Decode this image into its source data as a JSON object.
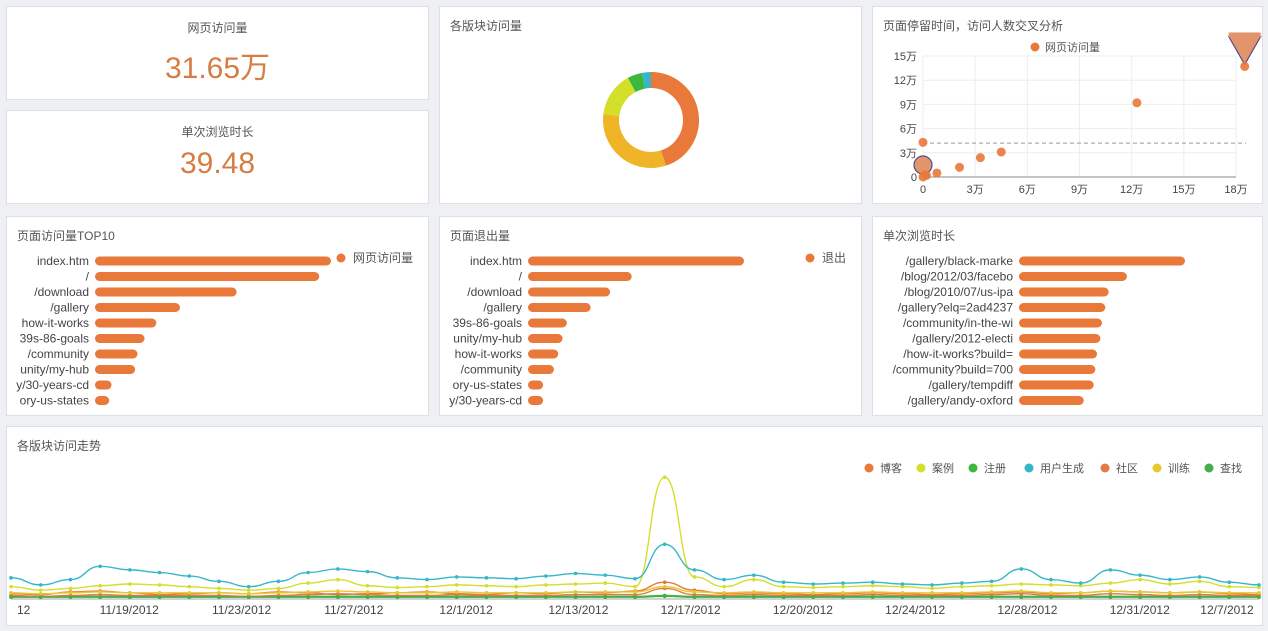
{
  "kpis": [
    {
      "title": "网页访问量",
      "value": "31.65万"
    },
    {
      "title": "单次浏览时长",
      "value": "39.48"
    }
  ],
  "colors": {
    "orange": "#e8793a",
    "yellow": "#f0b429",
    "lime": "#d4df2a",
    "green": "#3cb93c",
    "teal": "#35b7c9",
    "accent_text": "#d67d43"
  },
  "chart_data": [
    {
      "id": "donut",
      "type": "pie",
      "title": "各版块访问量",
      "slices": [
        {
          "value": 45,
          "color": "#e8793a"
        },
        {
          "value": 32,
          "color": "#f0b429"
        },
        {
          "value": 15,
          "color": "#d4df2a"
        },
        {
          "value": 5,
          "color": "#3cb93c"
        },
        {
          "value": 3,
          "color": "#35b7c9"
        }
      ]
    },
    {
      "id": "scatter",
      "type": "scatter",
      "title": "页面停留时间，访问人数交叉分析",
      "legend": [
        "网页访问量"
      ],
      "xlim": [
        0,
        180000
      ],
      "ylim": [
        0,
        150000
      ],
      "xticks": [
        0,
        30000,
        60000,
        90000,
        120000,
        150000,
        180000
      ],
      "xtick_labels": [
        "0",
        "3万",
        "6万",
        "9万",
        "12万",
        "15万",
        "18万"
      ],
      "yticks": [
        0,
        30000,
        60000,
        90000,
        120000,
        150000
      ],
      "ytick_labels": [
        "0",
        "3万",
        "6万",
        "9万",
        "12万",
        "15万"
      ],
      "mean_y": 42000,
      "points": [
        [
          0,
          0
        ],
        [
          1000,
          3000
        ],
        [
          2000,
          2000
        ],
        [
          8000,
          5000
        ],
        [
          21000,
          12000
        ],
        [
          33000,
          24000
        ],
        [
          45000,
          31000
        ],
        [
          0,
          43000
        ],
        [
          123000,
          92000
        ],
        [
          185000,
          137000
        ]
      ]
    },
    {
      "id": "top10",
      "type": "bar",
      "title": "页面访问量TOP10",
      "legend": [
        "网页访问量"
      ],
      "categories": [
        "index.htm",
        "/",
        "/download",
        "/gallery",
        "how-it-works",
        "39s-86-goals",
        "/community",
        "unity/my-hub",
        "y/30-years-cd",
        "ory-us-states"
      ],
      "values": [
        100,
        95,
        60,
        36,
        26,
        21,
        18,
        17,
        7,
        6
      ]
    },
    {
      "id": "exits",
      "type": "bar",
      "title": "页面退出量",
      "legend": [
        "退出"
      ],
      "categories": [
        "index.htm",
        "/",
        "/download",
        "/gallery",
        "39s-86-goals",
        "unity/my-hub",
        "how-it-works",
        "/community",
        "ory-us-states",
        "y/30-years-cd"
      ],
      "values": [
        100,
        48,
        38,
        29,
        18,
        16,
        14,
        12,
        7,
        7
      ]
    },
    {
      "id": "duration",
      "type": "bar",
      "title": "单次浏览时长",
      "categories": [
        "/gallery/black-marke",
        "/blog/2012/03/facebo",
        "/blog/2010/07/us-ipa",
        "/gallery?elq=2ad4237",
        "/community/in-the-wi",
        "/gallery/2012-electi",
        "/how-it-works?build=",
        "/community?build=700",
        "/gallery/tempdiff",
        "/gallery/andy-oxford"
      ],
      "values": [
        100,
        65,
        54,
        52,
        50,
        49,
        47,
        46,
        45,
        39
      ]
    },
    {
      "id": "trend",
      "type": "line",
      "title": "各版块访问走势",
      "x_labels": [
        "12",
        "11/19/2012",
        "11/23/2012",
        "11/27/2012",
        "12/1/2012",
        "12/13/2012",
        "12/17/2012",
        "12/20/2012",
        "12/24/2012",
        "12/28/2012",
        "12/31/2012",
        "12/7/2012"
      ],
      "series": [
        {
          "name": "博客",
          "color": "#e8793a",
          "values": [
            6,
            5,
            8,
            9,
            7,
            5,
            6,
            7,
            6,
            8,
            7,
            5,
            6,
            7,
            8,
            6,
            5,
            7,
            6,
            8,
            7,
            9,
            19,
            10,
            6,
            7,
            6,
            5,
            6,
            7,
            6,
            5,
            6,
            7,
            8,
            6,
            7,
            9,
            8,
            7,
            8,
            6,
            5
          ]
        },
        {
          "name": "案例",
          "color": "#d4df2a",
          "values": [
            14,
            10,
            12,
            15,
            17,
            16,
            14,
            12,
            10,
            12,
            18,
            22,
            15,
            13,
            14,
            16,
            15,
            14,
            16,
            17,
            18,
            14,
            138,
            25,
            14,
            22,
            14,
            13,
            14,
            15,
            14,
            12,
            14,
            15,
            17,
            16,
            15,
            18,
            22,
            17,
            20,
            14,
            13
          ]
        },
        {
          "name": "注册",
          "color": "#3cb93c",
          "values": [
            3,
            3,
            3,
            3,
            3,
            3,
            3,
            3,
            3,
            3,
            3,
            3,
            3,
            3,
            3,
            3,
            3,
            3,
            3,
            3,
            3,
            3,
            4,
            3,
            3,
            3,
            3,
            3,
            3,
            3,
            3,
            3,
            3,
            3,
            3,
            3,
            3,
            3,
            3,
            3,
            3,
            3,
            3
          ]
        },
        {
          "name": "用户生成",
          "color": "#35b7c9",
          "values": [
            24,
            16,
            22,
            37,
            33,
            30,
            26,
            20,
            14,
            20,
            30,
            34,
            31,
            24,
            22,
            25,
            24,
            23,
            26,
            29,
            27,
            23,
            62,
            33,
            22,
            27,
            19,
            17,
            18,
            19,
            17,
            16,
            18,
            20,
            34,
            22,
            18,
            33,
            27,
            22,
            25,
            19,
            16
          ]
        },
        {
          "name": "社区",
          "color": "#e07a46",
          "values": [
            4,
            3,
            4,
            5,
            4,
            4,
            4,
            4,
            3,
            4,
            5,
            6,
            5,
            4,
            4,
            5,
            4,
            4,
            4,
            5,
            5,
            5,
            12,
            5,
            4,
            5,
            4,
            4,
            4,
            5,
            4,
            4,
            4,
            5,
            6,
            4,
            4,
            6,
            5,
            4,
            5,
            4,
            4
          ]
        },
        {
          "name": "训练",
          "color": "#e8c82f",
          "values": [
            7,
            6,
            7,
            8,
            7,
            7,
            7,
            7,
            6,
            7,
            8,
            9,
            8,
            7,
            7,
            8,
            7,
            7,
            7,
            8,
            8,
            8,
            14,
            8,
            7,
            8,
            7,
            7,
            7,
            8,
            7,
            7,
            7,
            8,
            9,
            7,
            7,
            9,
            8,
            7,
            8,
            7,
            7
          ]
        },
        {
          "name": "查找",
          "color": "#47ad47",
          "values": [
            2,
            2,
            2,
            2,
            2,
            2,
            2,
            2,
            2,
            2,
            2,
            2,
            2,
            2,
            2,
            2,
            2,
            2,
            2,
            2,
            2,
            2,
            3,
            2,
            2,
            2,
            2,
            2,
            2,
            2,
            2,
            2,
            2,
            2,
            2,
            2,
            2,
            2,
            2,
            2,
            2,
            2,
            2
          ]
        }
      ],
      "ylim": [
        0,
        145
      ]
    }
  ]
}
